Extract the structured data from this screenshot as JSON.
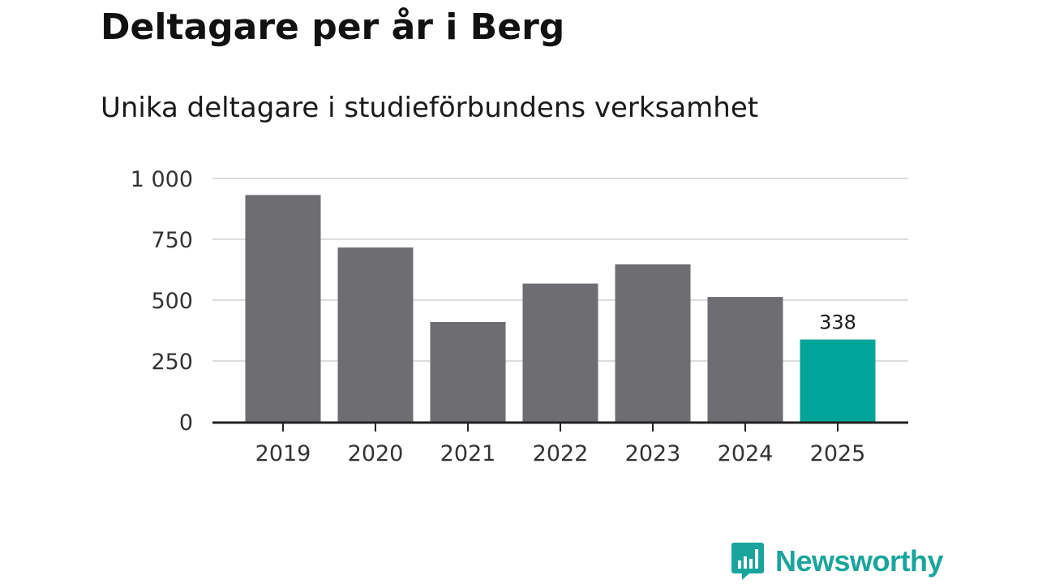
{
  "title": "Deltagare per år i Berg",
  "subtitle": "Unika deltagare i studieförbundens verksamhet",
  "chart_data": {
    "type": "bar",
    "title": "Deltagare per år i Berg",
    "subtitle": "Unika deltagare i studieförbundens verksamhet",
    "categories": [
      "2019",
      "2020",
      "2021",
      "2022",
      "2023",
      "2024",
      "2025"
    ],
    "values": [
      932,
      716,
      410,
      568,
      647,
      513,
      338
    ],
    "ylim": [
      0,
      1000
    ],
    "yticks": [
      0,
      250,
      500,
      750,
      1000
    ],
    "ytick_labels": [
      "0",
      "250",
      "500",
      "750",
      "1 000"
    ],
    "grid": true,
    "highlight_index": 6,
    "data_labels": [
      {
        "index": 6,
        "text": "338"
      }
    ],
    "colors": {
      "bar": "#6e6d72",
      "highlight": "#00a599",
      "grid": "#dddddd",
      "axis": "#222222"
    }
  },
  "logo": {
    "text": "Newsworthy",
    "icon": "bar-chart-speech-bubble-icon"
  }
}
